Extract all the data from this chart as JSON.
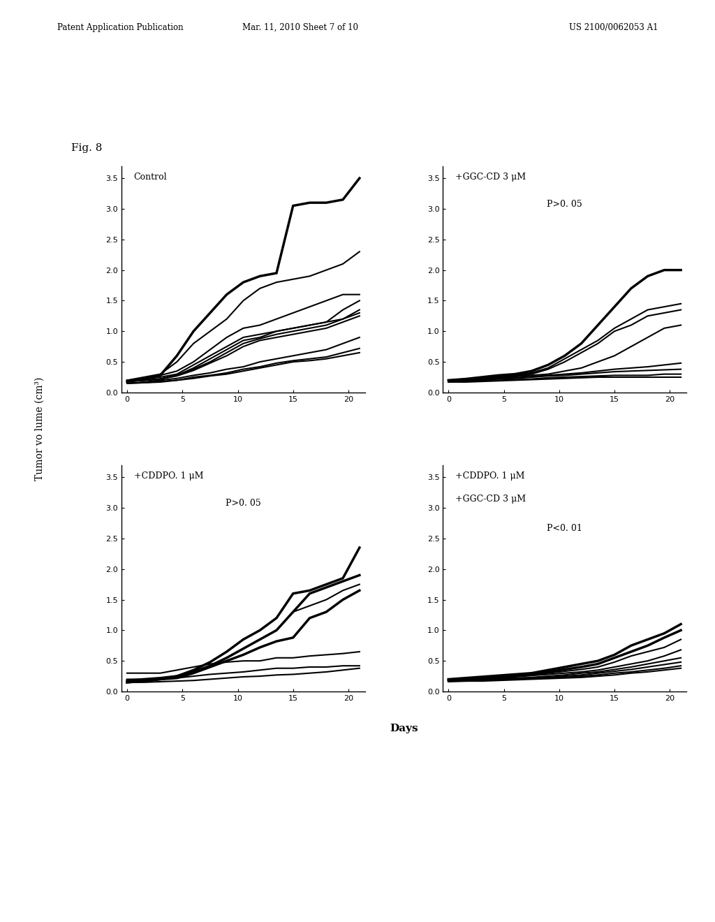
{
  "page_header": "Patent Application Publication    Mar. 11, 2010 Sheet 7 of 10    US 2100/0062053 A1",
  "page_header_left": "Patent Application Publication",
  "page_header_mid": "Mar. 11, 2010 Sheet 7 of 10",
  "page_header_right": "US 2100/0062053 A1",
  "fig_label": "Fig. 8",
  "ylabel": "Tumor vo lume (cm³)",
  "xlabel": "Days",
  "panels": [
    {
      "title": "Control",
      "pvalue": "",
      "lines": [
        [
          0.18,
          0.22,
          0.28,
          0.6,
          1.0,
          1.3,
          1.6,
          1.8,
          1.9,
          1.95,
          3.05,
          3.1,
          3.1,
          3.15,
          3.5
        ],
        [
          0.2,
          0.25,
          0.3,
          0.5,
          0.8,
          1.0,
          1.2,
          1.5,
          1.7,
          1.8,
          1.85,
          1.9,
          2.0,
          2.1,
          2.3
        ],
        [
          0.2,
          0.22,
          0.28,
          0.35,
          0.5,
          0.7,
          0.9,
          1.05,
          1.1,
          1.2,
          1.3,
          1.4,
          1.5,
          1.6,
          1.6
        ],
        [
          0.2,
          0.22,
          0.25,
          0.3,
          0.45,
          0.6,
          0.75,
          0.9,
          0.95,
          1.0,
          1.05,
          1.1,
          1.15,
          1.35,
          1.5
        ],
        [
          0.18,
          0.2,
          0.22,
          0.28,
          0.4,
          0.55,
          0.7,
          0.85,
          0.9,
          1.0,
          1.05,
          1.1,
          1.15,
          1.2,
          1.35
        ],
        [
          0.18,
          0.2,
          0.22,
          0.28,
          0.38,
          0.5,
          0.65,
          0.8,
          0.88,
          0.95,
          1.0,
          1.05,
          1.1,
          1.2,
          1.3
        ],
        [
          0.18,
          0.2,
          0.22,
          0.27,
          0.36,
          0.48,
          0.6,
          0.75,
          0.85,
          0.9,
          0.95,
          1.0,
          1.05,
          1.15,
          1.25
        ],
        [
          0.15,
          0.17,
          0.2,
          0.23,
          0.28,
          0.32,
          0.38,
          0.42,
          0.5,
          0.55,
          0.6,
          0.65,
          0.7,
          0.8,
          0.9
        ],
        [
          0.15,
          0.16,
          0.18,
          0.2,
          0.25,
          0.28,
          0.32,
          0.38,
          0.42,
          0.48,
          0.52,
          0.55,
          0.58,
          0.65,
          0.72
        ],
        [
          0.15,
          0.16,
          0.17,
          0.2,
          0.23,
          0.27,
          0.3,
          0.35,
          0.4,
          0.45,
          0.5,
          0.52,
          0.55,
          0.6,
          0.65
        ]
      ],
      "lw": [
        2.5,
        1.5,
        1.5,
        1.5,
        1.5,
        1.5,
        1.5,
        1.5,
        1.5,
        1.5
      ]
    },
    {
      "title": "+GGC-CD 3 μM",
      "pvalue": "P>0. 05",
      "lines": [
        [
          0.2,
          0.22,
          0.25,
          0.28,
          0.3,
          0.35,
          0.45,
          0.6,
          0.8,
          1.1,
          1.4,
          1.7,
          1.9,
          2.0,
          2.0
        ],
        [
          0.2,
          0.22,
          0.24,
          0.26,
          0.28,
          0.32,
          0.4,
          0.55,
          0.7,
          0.85,
          1.05,
          1.2,
          1.35,
          1.4,
          1.45
        ],
        [
          0.2,
          0.22,
          0.23,
          0.25,
          0.27,
          0.3,
          0.38,
          0.5,
          0.65,
          0.8,
          1.0,
          1.1,
          1.25,
          1.3,
          1.35
        ],
        [
          0.18,
          0.2,
          0.22,
          0.24,
          0.26,
          0.28,
          0.3,
          0.35,
          0.4,
          0.5,
          0.6,
          0.75,
          0.9,
          1.05,
          1.1
        ],
        [
          0.18,
          0.2,
          0.21,
          0.23,
          0.24,
          0.26,
          0.28,
          0.3,
          0.32,
          0.35,
          0.38,
          0.4,
          0.42,
          0.45,
          0.48
        ],
        [
          0.18,
          0.19,
          0.2,
          0.22,
          0.23,
          0.25,
          0.27,
          0.28,
          0.3,
          0.32,
          0.34,
          0.35,
          0.36,
          0.37,
          0.38
        ],
        [
          0.17,
          0.18,
          0.19,
          0.2,
          0.21,
          0.22,
          0.24,
          0.25,
          0.26,
          0.27,
          0.28,
          0.28,
          0.28,
          0.3,
          0.3
        ],
        [
          0.17,
          0.17,
          0.18,
          0.19,
          0.2,
          0.21,
          0.22,
          0.23,
          0.24,
          0.25,
          0.25,
          0.25,
          0.25,
          0.25,
          0.25
        ]
      ],
      "lw": [
        2.5,
        1.5,
        1.5,
        1.5,
        1.5,
        1.5,
        1.5,
        1.5
      ]
    },
    {
      "title": "+CDDPO. 1 μM",
      "pvalue": "P>0. 05",
      "lines": [
        [
          0.18,
          0.2,
          0.22,
          0.25,
          0.35,
          0.48,
          0.65,
          0.85,
          1.0,
          1.2,
          1.6,
          1.65,
          1.75,
          1.85,
          2.35
        ],
        [
          0.15,
          0.17,
          0.2,
          0.25,
          0.32,
          0.42,
          0.55,
          0.7,
          0.85,
          1.0,
          1.3,
          1.6,
          1.7,
          1.8,
          1.9
        ],
        [
          0.15,
          0.17,
          0.2,
          0.25,
          0.32,
          0.42,
          0.55,
          0.7,
          0.85,
          1.0,
          1.3,
          1.4,
          1.5,
          1.65,
          1.75
        ],
        [
          0.15,
          0.17,
          0.2,
          0.22,
          0.3,
          0.4,
          0.5,
          0.6,
          0.72,
          0.82,
          0.88,
          1.2,
          1.3,
          1.5,
          1.65
        ],
        [
          0.3,
          0.3,
          0.3,
          0.35,
          0.4,
          0.45,
          0.48,
          0.5,
          0.5,
          0.55,
          0.55,
          0.58,
          0.6,
          0.62,
          0.65
        ],
        [
          0.2,
          0.2,
          0.2,
          0.22,
          0.25,
          0.28,
          0.3,
          0.32,
          0.35,
          0.38,
          0.38,
          0.4,
          0.4,
          0.42,
          0.42
        ],
        [
          0.15,
          0.15,
          0.16,
          0.17,
          0.18,
          0.2,
          0.22,
          0.24,
          0.25,
          0.27,
          0.28,
          0.3,
          0.32,
          0.35,
          0.38
        ]
      ],
      "lw": [
        2.5,
        2.5,
        1.5,
        2.5,
        1.5,
        1.5,
        1.5
      ]
    },
    {
      "title": "+CDDPO. 1 μM",
      "title2": "+GGC-CD 3 μM",
      "pvalue": "P<0. 01",
      "lines": [
        [
          0.2,
          0.22,
          0.24,
          0.26,
          0.28,
          0.3,
          0.35,
          0.4,
          0.45,
          0.5,
          0.6,
          0.75,
          0.85,
          0.95,
          1.1
        ],
        [
          0.18,
          0.2,
          0.22,
          0.24,
          0.26,
          0.28,
          0.32,
          0.36,
          0.4,
          0.45,
          0.55,
          0.65,
          0.75,
          0.88,
          1.0
        ],
        [
          0.18,
          0.2,
          0.22,
          0.23,
          0.25,
          0.27,
          0.3,
          0.33,
          0.36,
          0.4,
          0.48,
          0.58,
          0.65,
          0.72,
          0.85
        ],
        [
          0.18,
          0.2,
          0.21,
          0.22,
          0.24,
          0.26,
          0.28,
          0.3,
          0.32,
          0.35,
          0.4,
          0.45,
          0.5,
          0.58,
          0.68
        ],
        [
          0.18,
          0.19,
          0.2,
          0.21,
          0.22,
          0.23,
          0.25,
          0.27,
          0.3,
          0.32,
          0.36,
          0.4,
          0.45,
          0.5,
          0.55
        ],
        [
          0.17,
          0.18,
          0.19,
          0.2,
          0.21,
          0.22,
          0.23,
          0.25,
          0.27,
          0.3,
          0.33,
          0.36,
          0.4,
          0.44,
          0.48
        ],
        [
          0.17,
          0.17,
          0.18,
          0.19,
          0.2,
          0.21,
          0.22,
          0.23,
          0.25,
          0.27,
          0.3,
          0.32,
          0.35,
          0.38,
          0.42
        ],
        [
          0.16,
          0.17,
          0.17,
          0.18,
          0.19,
          0.2,
          0.21,
          0.22,
          0.23,
          0.25,
          0.27,
          0.3,
          0.32,
          0.35,
          0.38
        ]
      ],
      "lw": [
        2.5,
        2.5,
        1.5,
        1.5,
        1.5,
        1.5,
        1.5,
        1.5
      ]
    }
  ],
  "x_points": [
    0,
    1.5,
    3,
    4.5,
    6,
    7.5,
    9,
    10.5,
    12,
    13.5,
    15,
    16.5,
    18,
    19.5,
    21
  ],
  "x_ticks": [
    0,
    5,
    10,
    15,
    20
  ],
  "y_ticks": [
    0,
    0.5,
    1,
    1.5,
    2,
    2.5,
    3,
    3.5
  ],
  "ylim": [
    0,
    3.7
  ],
  "xlim": [
    -0.5,
    21.5
  ],
  "background_color": "#ffffff",
  "line_color": "#000000",
  "header_fontsize": 8.5,
  "fig_label_fontsize": 11,
  "tick_fontsize": 8,
  "annotation_fontsize": 9,
  "ylabel_fontsize": 10,
  "xlabel_fontsize": 11
}
